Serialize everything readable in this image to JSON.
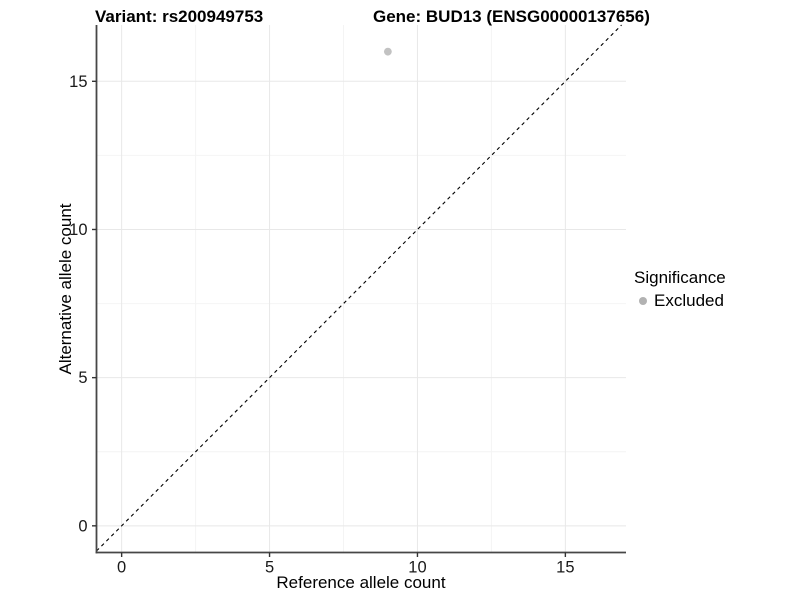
{
  "chart_data": {
    "type": "scatter",
    "title_left": "Variant: rs200949753",
    "title_right": "Gene: BUD13 (ENSG00000137656)",
    "xlabel": "Reference allele count",
    "ylabel": "Alternative allele count",
    "xlim": [
      -0.85,
      17.05
    ],
    "ylim": [
      -0.9,
      16.9
    ],
    "x_ticks": [
      0,
      5,
      10,
      15
    ],
    "x_tick_labels": [
      "0",
      "5",
      "10",
      "15"
    ],
    "y_ticks": [
      0,
      5,
      10,
      15
    ],
    "y_tick_labels": [
      "0",
      "5",
      "10",
      "15"
    ],
    "x_minor_ticks": [
      2.5,
      7.5,
      12.5
    ],
    "y_minor_ticks": [
      2.5,
      7.5,
      12.5
    ],
    "grid": "major and minor, very light gray on white",
    "points": [
      {
        "x": 9,
        "y": 16,
        "series": "Excluded"
      }
    ],
    "reference_line": {
      "kind": "identity y=x",
      "style": "dashed",
      "color": "#000000"
    },
    "legend": {
      "title": "Significance",
      "position": "right",
      "entries": [
        {
          "label": "Excluded",
          "color": "#b2b2b2"
        }
      ]
    }
  },
  "colors": {
    "background": "#ffffff",
    "grid_major": "#e8e8e8",
    "grid_minor": "#f4f4f4",
    "axis_line": "#474747",
    "tick_mark": "#333333",
    "tick_text": "#1a1a1a",
    "point_fill": "#c2c2c2",
    "reference_line": "#000000"
  }
}
